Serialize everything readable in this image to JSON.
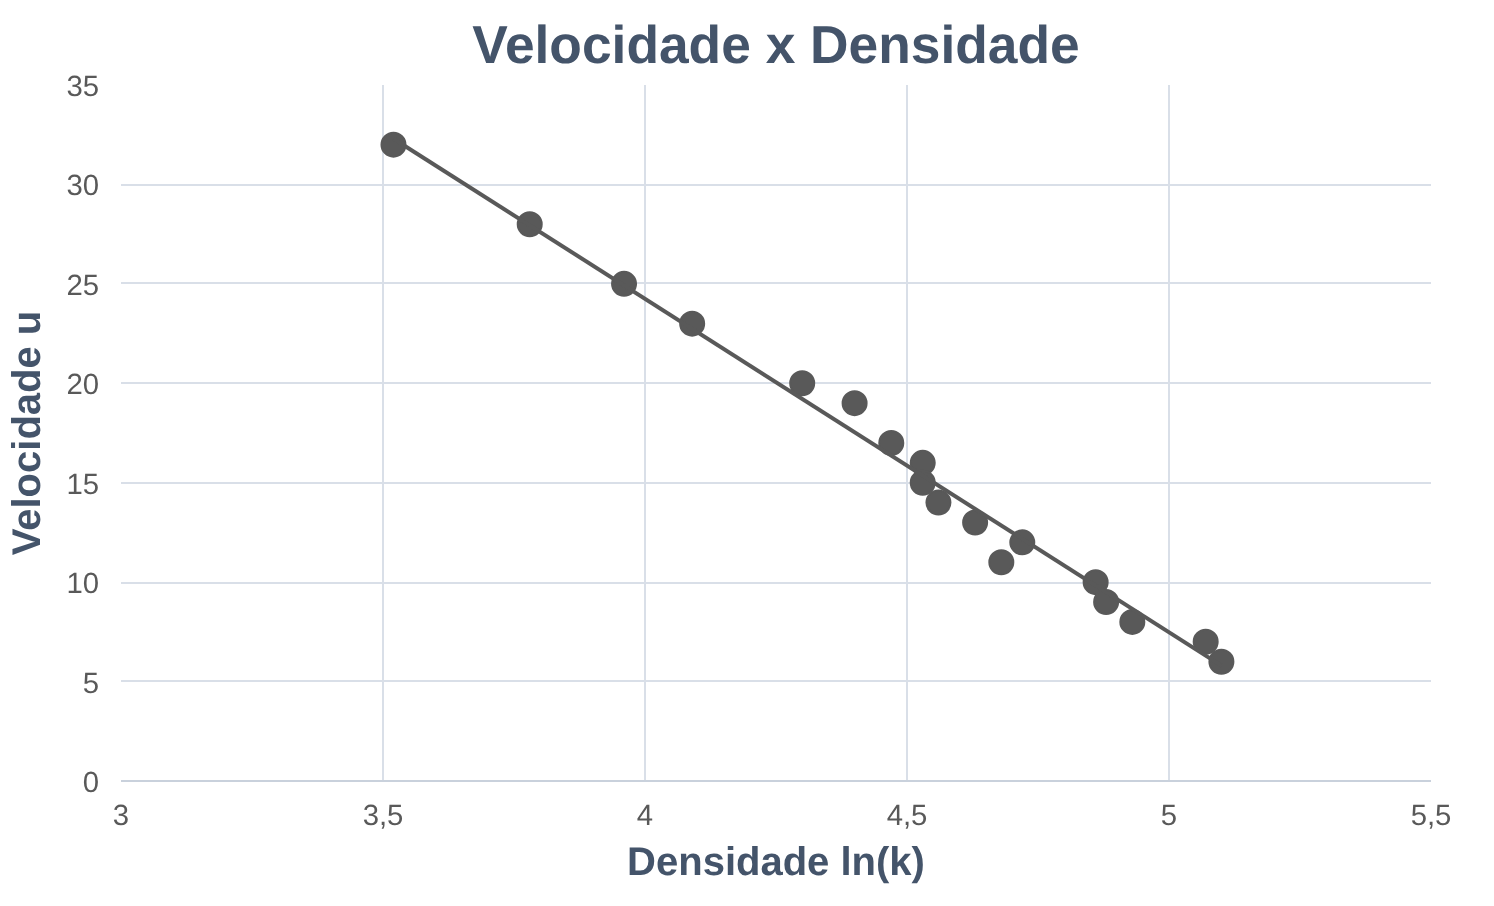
{
  "chart_data": {
    "type": "scatter",
    "title": "Velocidade x Densidade",
    "xlabel": "Densidade ln(k)",
    "ylabel": "Velocidade u",
    "xlim": [
      3,
      5.5
    ],
    "xticks": [
      3,
      {
        "value": 3.5,
        "label": "3,5"
      },
      4,
      {
        "value": 4.5,
        "label": "4,5"
      },
      5,
      {
        "value": 5.5,
        "label": "5,5"
      }
    ],
    "ylim": [
      0,
      35
    ],
    "yticks": [
      0,
      5,
      10,
      15,
      20,
      25,
      30,
      35
    ],
    "grid": true,
    "marker": "circle",
    "series": [
      {
        "color": "#595959",
        "x": [
          3.52,
          3.78,
          3.96,
          4.09,
          4.3,
          4.4,
          4.47,
          4.53,
          4.53,
          4.56,
          4.63,
          4.68,
          4.72,
          4.86,
          4.88,
          4.93,
          5.07,
          5.1
        ],
        "values": [
          32,
          28,
          25,
          23,
          20,
          19,
          17,
          16,
          15,
          14,
          13,
          11,
          12,
          10,
          9,
          8,
          7,
          6
        ]
      },
      {
        "type": "line",
        "color": "#595959",
        "x": [
          3.52,
          5.1
        ],
        "values": [
          32.3,
          5.8
        ],
        "marker": "none",
        "line_style": "solid"
      }
    ]
  }
}
